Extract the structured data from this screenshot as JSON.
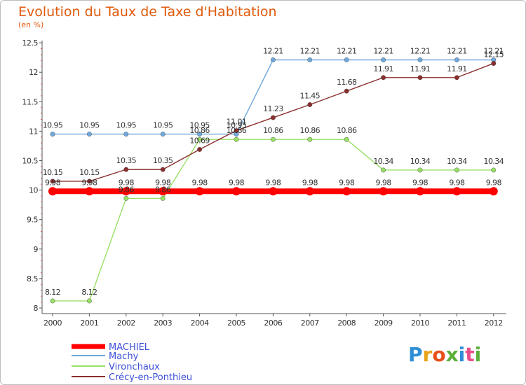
{
  "chart_data": {
    "type": "line",
    "title": "Evolution du Taux de Taxe d'Habitation",
    "unit": "(en %)",
    "x": [
      "2000",
      "2001",
      "2002",
      "2003",
      "2004",
      "2005",
      "2006",
      "2007",
      "2008",
      "2009",
      "2010",
      "2011",
      "2012"
    ],
    "y_ticks": [
      "8",
      "8.5",
      "9",
      "9.5",
      "10",
      "10.5",
      "11",
      "11.5",
      "12",
      "12.5"
    ],
    "ylim": [
      8,
      12.5
    ],
    "grid": false,
    "legend_position": "bottom-left",
    "series": [
      {
        "name": "MACHIEL",
        "color": "#ff0000",
        "values": [
          9.98,
          9.98,
          9.98,
          9.98,
          9.98,
          9.98,
          9.98,
          9.98,
          9.98,
          9.98,
          9.98,
          9.98,
          9.98
        ],
        "labels": [
          "9.98",
          "9.98",
          "9.98",
          "9.98",
          "9.98",
          "9.98",
          "9.98",
          "9.98",
          "9.98",
          "9.98",
          "9.98",
          "9.98",
          "9.98"
        ]
      },
      {
        "name": "Machy",
        "color": "#6fa8dc",
        "values": [
          10.95,
          10.95,
          10.95,
          10.95,
          10.95,
          10.95,
          12.21,
          12.21,
          12.21,
          12.21,
          12.21,
          12.21,
          12.21
        ],
        "labels": [
          "10.95",
          "10.95",
          "10.95",
          "10.95",
          "10.95",
          "10.95",
          "12.21",
          "12.21",
          "12.21",
          "12.21",
          "12.21",
          "12.21",
          "12.21"
        ]
      },
      {
        "name": "Vironchaux",
        "color": "#99e066",
        "values": [
          8.12,
          8.12,
          9.86,
          9.86,
          10.86,
          10.86,
          10.86,
          10.86,
          10.86,
          10.34,
          10.34,
          10.34,
          10.34
        ],
        "labels": [
          "8.12",
          "8.12",
          "9.86",
          "9.86",
          "10.86",
          "10.86",
          "10.86",
          "10.86",
          "10.86",
          "10.34",
          "10.34",
          "10.34",
          "10.34"
        ]
      },
      {
        "name": "Crécy-en-Ponthieu",
        "color": "#8b2e2e",
        "values": [
          10.15,
          10.15,
          10.35,
          10.35,
          10.69,
          11.01,
          11.23,
          11.45,
          11.68,
          11.91,
          11.91,
          11.91,
          12.15
        ],
        "labels": [
          "10.15",
          "10.15",
          "10.35",
          "10.35",
          "10.69",
          "11.01",
          "11.23",
          "11.45",
          "11.68",
          "11.91",
          "11.91",
          "11.91",
          "12.15"
        ]
      }
    ]
  },
  "logo": {
    "text": "Proxiti"
  }
}
